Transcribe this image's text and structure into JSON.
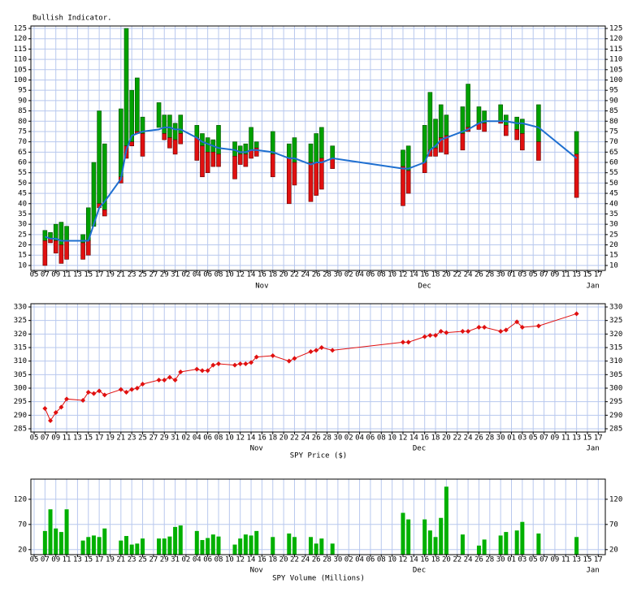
{
  "chart_data": [
    {
      "type": "range_bar",
      "title": "Bullish Indicator.",
      "x": [
        2,
        3,
        4,
        5,
        6,
        9,
        10,
        11,
        12,
        13,
        16,
        17,
        18,
        19,
        20,
        23,
        24,
        25,
        26,
        27,
        30,
        31,
        32,
        33,
        34,
        37,
        38,
        39,
        40,
        41,
        44,
        47,
        48,
        51,
        52,
        53,
        55,
        68,
        69,
        72,
        73,
        74,
        75,
        76,
        79,
        80,
        82,
        83,
        86,
        87,
        89,
        90,
        93,
        100
      ],
      "high": [
        27,
        26,
        30,
        31,
        29,
        25,
        38,
        60,
        85,
        69,
        86,
        125,
        95,
        101,
        82,
        89,
        83,
        83,
        79,
        83,
        78,
        74,
        72,
        71,
        78,
        70,
        68,
        69,
        77,
        70,
        75,
        69,
        72,
        69,
        74,
        77,
        68,
        66,
        68,
        78,
        94,
        81,
        88,
        83,
        87,
        98,
        87,
        85,
        88,
        83,
        82,
        81,
        88,
        75
      ],
      "mid": [
        22,
        23,
        22,
        20,
        22,
        21,
        22,
        29,
        40,
        37,
        53,
        68,
        70,
        75,
        74,
        77,
        74,
        72,
        71,
        74,
        72,
        68,
        65,
        65,
        64,
        63,
        64,
        64,
        66,
        67,
        64,
        62,
        60,
        60,
        60,
        62,
        62,
        58,
        56,
        60,
        66,
        67,
        72,
        73,
        74,
        77,
        79,
        79,
        80,
        78,
        76,
        74,
        70,
        64
      ],
      "low": [
        10,
        21,
        16,
        11,
        13,
        13,
        15,
        29,
        38,
        34,
        50,
        62,
        68,
        74,
        63,
        77,
        71,
        67,
        64,
        69,
        61,
        53,
        55,
        58,
        58,
        52,
        59,
        58,
        62,
        63,
        53,
        40,
        49,
        41,
        44,
        47,
        57,
        39,
        45,
        55,
        63,
        63,
        65,
        64,
        66,
        75,
        76,
        75,
        79,
        73,
        71,
        66,
        61,
        43
      ],
      "average": [
        24,
        23,
        23,
        22,
        22,
        22,
        22,
        30,
        38,
        41,
        52,
        66,
        73,
        74,
        75,
        76,
        77,
        77,
        76,
        76,
        72,
        70,
        69,
        68,
        67,
        66,
        65,
        65,
        66,
        66,
        65,
        62,
        62,
        59,
        60,
        60,
        62,
        57,
        57,
        60,
        66,
        68,
        71,
        72,
        75,
        76,
        79,
        80,
        80,
        80,
        79,
        79,
        77,
        62
      ],
      "colors": {
        "up": "#00a000",
        "down": "#e01010",
        "line": "#1e6fd0"
      },
      "ylim": [
        7.6,
        126.2
      ],
      "yticks": [
        10,
        15,
        20,
        25,
        30,
        35,
        40,
        45,
        50,
        55,
        60,
        65,
        70,
        75,
        80,
        85,
        90,
        95,
        100,
        105,
        110,
        115,
        120,
        125
      ],
      "xlim": [
        -0.6,
        105.3
      ],
      "xticks": [
        {
          "value": 0,
          "label": "05"
        },
        {
          "value": 2,
          "label": "07"
        },
        {
          "value": 4,
          "label": "09"
        },
        {
          "value": 6,
          "label": "11"
        },
        {
          "value": 8,
          "label": "13"
        },
        {
          "value": 10,
          "label": "15"
        },
        {
          "value": 12,
          "label": "17"
        },
        {
          "value": 14,
          "label": "19"
        },
        {
          "value": 16,
          "label": "21"
        },
        {
          "value": 18,
          "label": "23"
        },
        {
          "value": 20,
          "label": "25"
        },
        {
          "value": 22,
          "label": "27"
        },
        {
          "value": 24,
          "label": "29"
        },
        {
          "value": 26,
          "label": "31"
        },
        {
          "value": 28,
          "label": "02"
        },
        {
          "value": 30,
          "label": "04"
        },
        {
          "value": 32,
          "label": "06"
        },
        {
          "value": 34,
          "label": "08"
        },
        {
          "value": 36,
          "label": "10"
        },
        {
          "value": 38,
          "label": "12"
        },
        {
          "value": 40,
          "label": "14"
        },
        {
          "value": 42,
          "label": "16"
        },
        {
          "value": 44,
          "label": "18"
        },
        {
          "value": 46,
          "label": "20"
        },
        {
          "value": 48,
          "label": "22"
        },
        {
          "value": 50,
          "label": "24"
        },
        {
          "value": 52,
          "label": "26"
        },
        {
          "value": 54,
          "label": "28"
        },
        {
          "value": 56,
          "label": "30"
        },
        {
          "value": 58,
          "label": "02"
        },
        {
          "value": 60,
          "label": "04"
        },
        {
          "value": 62,
          "label": "06"
        },
        {
          "value": 64,
          "label": "08"
        },
        {
          "value": 66,
          "label": "10"
        },
        {
          "value": 68,
          "label": "12"
        },
        {
          "value": 70,
          "label": "14"
        },
        {
          "value": 72,
          "label": "16"
        },
        {
          "value": 74,
          "label": "18"
        },
        {
          "value": 76,
          "label": "20"
        },
        {
          "value": 78,
          "label": "22"
        },
        {
          "value": 80,
          "label": "24"
        },
        {
          "value": 82,
          "label": "26"
        },
        {
          "value": 84,
          "label": "28"
        },
        {
          "value": 86,
          "label": "30"
        },
        {
          "value": 88,
          "label": "01"
        },
        {
          "value": 90,
          "label": "03"
        },
        {
          "value": 92,
          "label": "05"
        },
        {
          "value": 94,
          "label": "07"
        },
        {
          "value": 96,
          "label": "09"
        },
        {
          "value": 98,
          "label": "11"
        },
        {
          "value": 100,
          "label": "13"
        },
        {
          "value": 102,
          "label": "15"
        },
        {
          "value": 104,
          "label": "17"
        }
      ],
      "month_labels": [
        {
          "value": 42,
          "label": "Nov"
        },
        {
          "value": 72,
          "label": "Dec"
        },
        {
          "value": 103,
          "label": "Jan"
        }
      ],
      "grid": true
    },
    {
      "type": "line",
      "xlabel": "SPY Price ($)",
      "x": [
        2,
        3,
        4,
        5,
        6,
        9,
        10,
        11,
        12,
        13,
        16,
        17,
        18,
        19,
        20,
        23,
        24,
        25,
        26,
        27,
        30,
        31,
        32,
        33,
        34,
        37,
        38,
        39,
        40,
        41,
        44,
        47,
        48,
        51,
        52,
        53,
        55,
        68,
        69,
        72,
        73,
        74,
        75,
        76,
        79,
        80,
        82,
        83,
        86,
        87,
        89,
        90,
        93,
        100
      ],
      "values": [
        292.5,
        288,
        291,
        293,
        296,
        295.5,
        298.5,
        298,
        299,
        297.5,
        299.5,
        298.5,
        299.5,
        300,
        301.5,
        303,
        303,
        304,
        303,
        306,
        307,
        306.5,
        306.5,
        308.5,
        309,
        308.5,
        309,
        309,
        309.5,
        311.5,
        312,
        310,
        311,
        313.5,
        314,
        315,
        314,
        317,
        317,
        319,
        319.5,
        319.5,
        321,
        320.5,
        321,
        321,
        322.5,
        322.5,
        321,
        321.5,
        324.5,
        322.5,
        323,
        327.5
      ],
      "color": "#e01010",
      "ylim": [
        283.8,
        331.2
      ],
      "yticks": [
        285,
        290,
        295,
        300,
        305,
        310,
        315,
        320,
        325,
        330
      ],
      "xlim": [
        -0.6,
        105.3
      ],
      "xticks": [
        {
          "value": 0,
          "label": "05"
        },
        {
          "value": 2,
          "label": "07"
        },
        {
          "value": 4,
          "label": "09"
        },
        {
          "value": 6,
          "label": "11"
        },
        {
          "value": 8,
          "label": "13"
        },
        {
          "value": 10,
          "label": "15"
        },
        {
          "value": 12,
          "label": "17"
        },
        {
          "value": 14,
          "label": "19"
        },
        {
          "value": 16,
          "label": "21"
        },
        {
          "value": 18,
          "label": "23"
        },
        {
          "value": 20,
          "label": "25"
        },
        {
          "value": 22,
          "label": "27"
        },
        {
          "value": 24,
          "label": "29"
        },
        {
          "value": 26,
          "label": "31"
        },
        {
          "value": 28,
          "label": "02"
        },
        {
          "value": 30,
          "label": "04"
        },
        {
          "value": 32,
          "label": "06"
        },
        {
          "value": 34,
          "label": "08"
        },
        {
          "value": 36,
          "label": "10"
        },
        {
          "value": 38,
          "label": "12"
        },
        {
          "value": 40,
          "label": "14"
        },
        {
          "value": 42,
          "label": "16"
        },
        {
          "value": 44,
          "label": "18"
        },
        {
          "value": 46,
          "label": "20"
        },
        {
          "value": 48,
          "label": "22"
        },
        {
          "value": 50,
          "label": "24"
        },
        {
          "value": 52,
          "label": "26"
        },
        {
          "value": 54,
          "label": "28"
        },
        {
          "value": 56,
          "label": "30"
        },
        {
          "value": 58,
          "label": "02"
        },
        {
          "value": 60,
          "label": "04"
        },
        {
          "value": 62,
          "label": "06"
        },
        {
          "value": 64,
          "label": "08"
        },
        {
          "value": 66,
          "label": "10"
        },
        {
          "value": 68,
          "label": "12"
        },
        {
          "value": 70,
          "label": "14"
        },
        {
          "value": 72,
          "label": "16"
        },
        {
          "value": 74,
          "label": "18"
        },
        {
          "value": 76,
          "label": "20"
        },
        {
          "value": 78,
          "label": "22"
        },
        {
          "value": 80,
          "label": "24"
        },
        {
          "value": 82,
          "label": "26"
        },
        {
          "value": 84,
          "label": "28"
        },
        {
          "value": 86,
          "label": "30"
        },
        {
          "value": 88,
          "label": "01"
        },
        {
          "value": 90,
          "label": "03"
        },
        {
          "value": 92,
          "label": "05"
        },
        {
          "value": 94,
          "label": "07"
        },
        {
          "value": 96,
          "label": "09"
        },
        {
          "value": 98,
          "label": "11"
        },
        {
          "value": 100,
          "label": "13"
        },
        {
          "value": 102,
          "label": "15"
        },
        {
          "value": 104,
          "label": "17"
        }
      ],
      "month_labels": [
        {
          "value": 41,
          "label": "Nov"
        },
        {
          "value": 71,
          "label": "Dec"
        },
        {
          "value": 103,
          "label": "Jan"
        }
      ],
      "grid": true
    },
    {
      "type": "bar",
      "xlabel": "SPY Volume (Millions)",
      "x": [
        2,
        3,
        4,
        5,
        6,
        9,
        10,
        11,
        12,
        13,
        16,
        17,
        18,
        19,
        20,
        23,
        24,
        25,
        26,
        27,
        30,
        31,
        32,
        33,
        34,
        37,
        38,
        39,
        40,
        41,
        44,
        47,
        48,
        51,
        52,
        53,
        55,
        68,
        69,
        72,
        73,
        74,
        75,
        76,
        79,
        80,
        82,
        83,
        86,
        87,
        89,
        90,
        93,
        100
      ],
      "values": [
        57,
        100,
        62,
        55,
        100,
        38,
        45,
        48,
        45,
        62,
        38,
        47,
        30,
        32,
        42,
        42,
        42,
        46,
        65,
        68,
        57,
        39,
        43,
        50,
        46,
        30,
        42,
        50,
        48,
        57,
        45,
        52,
        45,
        45,
        32,
        42,
        32,
        93,
        80,
        80,
        58,
        45,
        83,
        145,
        50,
        null,
        28,
        40,
        48,
        55,
        58,
        75,
        52,
        45
      ],
      "color": "#00b000",
      "ylim": [
        10,
        160
      ],
      "yticks": [
        20,
        70,
        120
      ],
      "xlim": [
        -0.6,
        105.3
      ],
      "xticks": [
        {
          "value": 0,
          "label": "05"
        },
        {
          "value": 2,
          "label": "07"
        },
        {
          "value": 4,
          "label": "09"
        },
        {
          "value": 6,
          "label": "11"
        },
        {
          "value": 8,
          "label": "13"
        },
        {
          "value": 10,
          "label": "15"
        },
        {
          "value": 12,
          "label": "17"
        },
        {
          "value": 14,
          "label": "19"
        },
        {
          "value": 16,
          "label": "21"
        },
        {
          "value": 18,
          "label": "23"
        },
        {
          "value": 20,
          "label": "25"
        },
        {
          "value": 22,
          "label": "27"
        },
        {
          "value": 24,
          "label": "29"
        },
        {
          "value": 26,
          "label": "31"
        },
        {
          "value": 28,
          "label": "02"
        },
        {
          "value": 30,
          "label": "04"
        },
        {
          "value": 32,
          "label": "06"
        },
        {
          "value": 34,
          "label": "08"
        },
        {
          "value": 36,
          "label": "10"
        },
        {
          "value": 38,
          "label": "12"
        },
        {
          "value": 40,
          "label": "14"
        },
        {
          "value": 42,
          "label": "16"
        },
        {
          "value": 44,
          "label": "18"
        },
        {
          "value": 46,
          "label": "20"
        },
        {
          "value": 48,
          "label": "22"
        },
        {
          "value": 50,
          "label": "24"
        },
        {
          "value": 52,
          "label": "26"
        },
        {
          "value": 54,
          "label": "28"
        },
        {
          "value": 56,
          "label": "30"
        },
        {
          "value": 58,
          "label": "02"
        },
        {
          "value": 60,
          "label": "04"
        },
        {
          "value": 62,
          "label": "06"
        },
        {
          "value": 64,
          "label": "08"
        },
        {
          "value": 66,
          "label": "10"
        },
        {
          "value": 68,
          "label": "12"
        },
        {
          "value": 70,
          "label": "14"
        },
        {
          "value": 72,
          "label": "16"
        },
        {
          "value": 74,
          "label": "18"
        },
        {
          "value": 76,
          "label": "20"
        },
        {
          "value": 78,
          "label": "22"
        },
        {
          "value": 80,
          "label": "24"
        },
        {
          "value": 82,
          "label": "26"
        },
        {
          "value": 84,
          "label": "28"
        },
        {
          "value": 86,
          "label": "30"
        },
        {
          "value": 88,
          "label": "01"
        },
        {
          "value": 90,
          "label": "03"
        },
        {
          "value": 92,
          "label": "05"
        },
        {
          "value": 94,
          "label": "07"
        },
        {
          "value": 96,
          "label": "09"
        },
        {
          "value": 98,
          "label": "11"
        },
        {
          "value": 100,
          "label": "13"
        },
        {
          "value": 102,
          "label": "15"
        },
        {
          "value": 104,
          "label": "17"
        }
      ],
      "month_labels": [
        {
          "value": 41,
          "label": "Nov"
        },
        {
          "value": 71,
          "label": "Dec"
        },
        {
          "value": 103,
          "label": "Jan"
        }
      ],
      "grid": true
    }
  ]
}
